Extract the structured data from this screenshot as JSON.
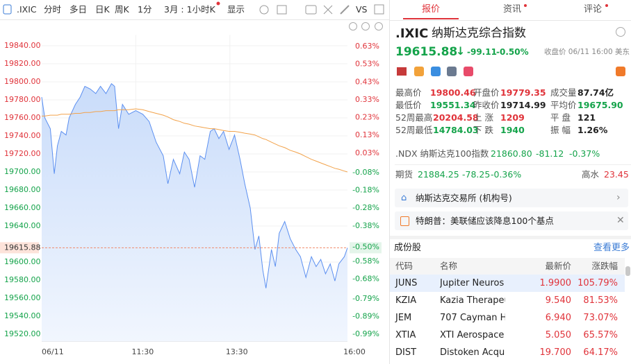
{
  "toolbar": [
    ".IXIC",
    "分时",
    "多日",
    "日K",
    "周K",
    "1分",
    "3月 : 1小时K",
    "显示",
    "VS"
  ],
  "chart_data": {
    "type": "line",
    "x": [
      0,
      4,
      11,
      16,
      20,
      25,
      31,
      35,
      43,
      49,
      55,
      62,
      69,
      75,
      82,
      89,
      93,
      98,
      103,
      111,
      120,
      129,
      137,
      146,
      155,
      161,
      168,
      176,
      182,
      188,
      195,
      202,
      208,
      215,
      220,
      226,
      232,
      239,
      246,
      253,
      259,
      266,
      272,
      277,
      282,
      286,
      293,
      298,
      303,
      310,
      317,
      324,
      330,
      337,
      344,
      350,
      356,
      362,
      368,
      374,
      379,
      386,
      390
    ],
    "series": [
      {
        "color": "#5b8ff0",
        "fill": true,
        "values": [
          19783,
          19760,
          19748,
          19698,
          19729,
          19745,
          19741,
          19760,
          19775,
          19783,
          19795,
          19792,
          19787,
          19795,
          19787,
          19798,
          19795,
          19748,
          19775,
          19764,
          19768,
          19764,
          19756,
          19733,
          19718,
          19687,
          19714,
          19698,
          19722,
          19714,
          19683,
          19718,
          19714,
          19745,
          19748,
          19737,
          19745,
          19725,
          19741,
          19714,
          19687,
          19660,
          19614,
          19629,
          19591,
          19571,
          19614,
          19595,
          19632,
          19645,
          19626,
          19614,
          19606,
          19583,
          19606,
          19595,
          19603,
          19587,
          19598,
          19579,
          19598,
          19606,
          19615.88
        ]
      },
      {
        "color": "#f2a24a",
        "fill": false,
        "values": [
          19762,
          19762,
          19763,
          19763,
          19763,
          19764,
          19764,
          19764,
          19765,
          19765,
          19766,
          19766,
          19767,
          19767,
          19768,
          19768,
          19768,
          19769,
          19769,
          19769,
          19770,
          19769,
          19767,
          19765,
          19763,
          19761,
          19758,
          19756,
          19754,
          19753,
          19751,
          19750,
          19749,
          19748,
          19748,
          19747,
          19746,
          19745,
          19745,
          19744,
          19743,
          19742,
          19741,
          19739,
          19737,
          19736,
          19733,
          19731,
          19729,
          19727,
          19724,
          19722,
          19720,
          19717,
          19714,
          19712,
          19710,
          19708,
          19706,
          19704,
          19703,
          19701,
          19700
        ]
      }
    ],
    "xlim": [
      0,
      390
    ],
    "xticks": [
      {
        "value": 0,
        "label": "06/11"
      },
      {
        "value": 120,
        "label": "11:30"
      },
      {
        "value": 240,
        "label": "13:30"
      },
      {
        "value": 390,
        "label": "16:00"
      }
    ],
    "ylim": [
      19512,
      19852
    ],
    "yticks": [
      {
        "value": 19840,
        "label": "19840.00"
      },
      {
        "value": 19820,
        "label": "19820.00"
      },
      {
        "value": 19800,
        "label": "19800.00"
      },
      {
        "value": 19780,
        "label": "19780.00"
      },
      {
        "value": 19760,
        "label": "19760.00"
      },
      {
        "value": 19740,
        "label": "19740.00"
      },
      {
        "value": 19720,
        "label": "19720.00"
      },
      {
        "value": 19700,
        "label": "19700.00"
      },
      {
        "value": 19680,
        "label": "19680.00"
      },
      {
        "value": 19660,
        "label": "19660.00"
      },
      {
        "value": 19640,
        "label": "19640.00"
      },
      {
        "value": 19600,
        "label": "19600.00"
      },
      {
        "value": 19580,
        "label": "19580.00"
      },
      {
        "value": 19560,
        "label": "19560.00"
      },
      {
        "value": 19540,
        "label": "19540.00"
      },
      {
        "value": 19520,
        "label": "19520.00"
      }
    ],
    "y2lim": [
      -1.03,
      0.695
    ],
    "y2ticks": [
      {
        "value": 0.63,
        "label": "0.63%"
      },
      {
        "value": 0.53,
        "label": "0.53%"
      },
      {
        "value": 0.43,
        "label": "0.43%"
      },
      {
        "value": 0.33,
        "label": "0.33%"
      },
      {
        "value": 0.23,
        "label": "0.23%"
      },
      {
        "value": 0.13,
        "label": "0.13%"
      },
      {
        "value": 0.03,
        "label": "0.03%"
      },
      {
        "value": -0.08,
        "label": "-0.08%"
      },
      {
        "value": -0.18,
        "label": "-0.18%"
      },
      {
        "value": -0.28,
        "label": "-0.28%"
      },
      {
        "value": -0.38,
        "label": "-0.38%"
      },
      {
        "value": -0.58,
        "label": "-0.58%"
      },
      {
        "value": -0.68,
        "label": "-0.68%"
      },
      {
        "value": -0.79,
        "label": "-0.79%"
      },
      {
        "value": -0.89,
        "label": "-0.89%"
      },
      {
        "value": -0.99,
        "label": "-0.99%"
      }
    ],
    "current_price": 19615.88,
    "current_pct": {
      "value": -0.5,
      "label": "-0.50%"
    },
    "grid": true
  },
  "tabs": [
    "报价",
    "资讯",
    "评论"
  ],
  "quote": {
    "symbol": ".IXIC",
    "name": "纳斯达克综合指数",
    "price": "19615.88",
    "change": "-99.11",
    "change_pct": "-0.50%",
    "close_info": "收盘价 06/11 16:00 美东"
  },
  "stats": [
    [
      "最高价",
      "19800.46"
    ],
    [
      "开盘价",
      "19779.35"
    ],
    [
      "成交量",
      "87.74亿"
    ],
    [
      "最低价",
      "19551.34"
    ],
    [
      "昨收价",
      "19714.99"
    ],
    [
      "平均价",
      "19675.90"
    ],
    [
      "52周最高",
      "20204.58"
    ],
    [
      "上 涨",
      "1209"
    ],
    [
      "平 盘",
      "121"
    ],
    [
      "52周最低",
      "14784.03"
    ],
    [
      "下 跌",
      "1940"
    ],
    [
      "振 幅",
      "1.26%"
    ]
  ],
  "ndx": {
    "label": ".NDX 纳斯达克100指数",
    "price": "21860.80",
    "change": "-81.12",
    "pct": "-0.37%"
  },
  "futures": {
    "label": "期货",
    "price": "21884.25",
    "change": "-78.25",
    "pct": "-0.36%",
    "premium_label": "高水",
    "premium": "23.45"
  },
  "links": [
    "纳斯达克交易所 (机构号)",
    "特朗普：美联储应该降息100个基点"
  ],
  "constituents": {
    "title": "成份股",
    "more": "查看更多",
    "columns": [
      "代码",
      "名称",
      "最新价",
      "涨跌幅"
    ],
    "rows": [
      [
        "JUNS",
        "Jupiter Neuros",
        "1.9900",
        "105.79%"
      ],
      [
        "KZIA",
        "Kazia Therapeu",
        "9.540",
        "81.53%"
      ],
      [
        "JEM",
        "707 Cayman H",
        "6.940",
        "73.07%"
      ],
      [
        "XTIA",
        "XTI Aerospace",
        "5.050",
        "65.57%"
      ],
      [
        "DIST",
        "Distoken Acqui",
        "19.700",
        "64.17%"
      ]
    ]
  }
}
